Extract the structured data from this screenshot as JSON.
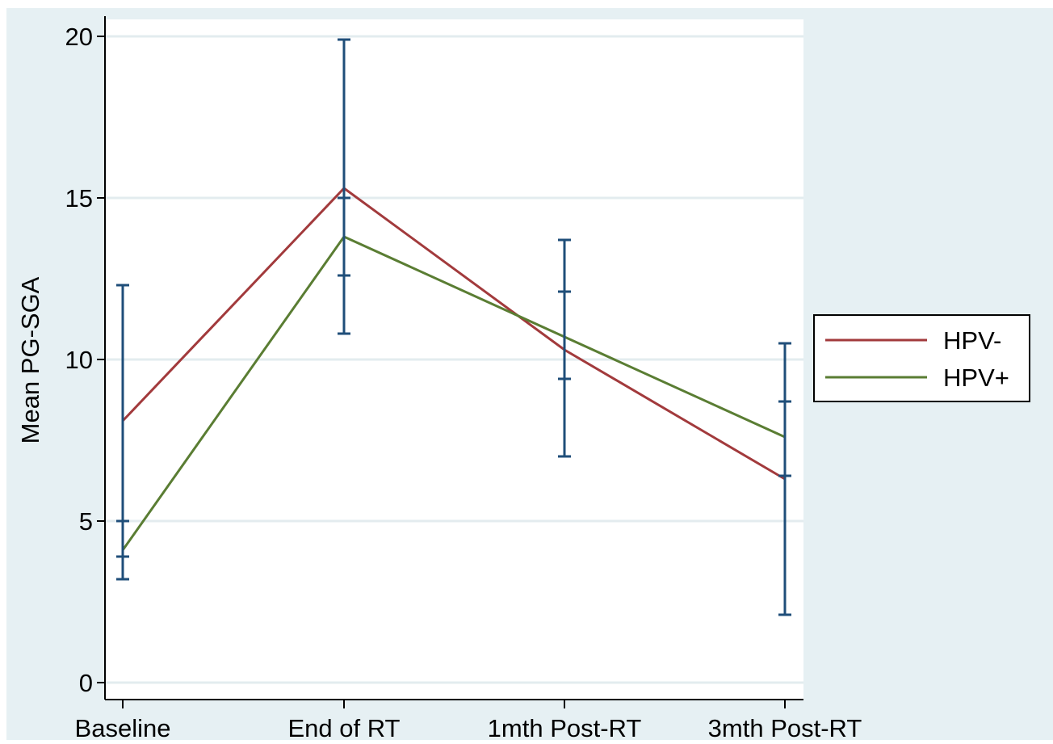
{
  "chart_data": {
    "type": "line",
    "title": "",
    "xlabel": "",
    "ylabel": "Mean PG-SGA",
    "categories": [
      "Baseline",
      "End of RT",
      "1mth Post-RT",
      "3mth Post-RT"
    ],
    "ylim": [
      0,
      20
    ],
    "yticks": [
      0,
      5,
      10,
      15,
      20
    ],
    "grid": true,
    "legend_position": "right",
    "series": [
      {
        "name": "HPV-",
        "color": "#a23a3c",
        "values": [
          8.1,
          15.3,
          10.3,
          6.3
        ]
      },
      {
        "name": "HPV+",
        "color": "#5a7d33",
        "values": [
          4.1,
          13.8,
          10.7,
          7.6
        ]
      }
    ],
    "error_bars": {
      "color": "#1f4e79",
      "intervals": [
        {
          "category": "Baseline",
          "low": 3.2,
          "high": 12.3,
          "tick_marks": [
            3.9,
            5.0
          ]
        },
        {
          "category": "End of RT",
          "low": 10.8,
          "high": 19.9,
          "tick_marks": [
            12.6,
            15.0
          ]
        },
        {
          "category": "1mth Post-RT",
          "low": 7.0,
          "high": 13.7,
          "tick_marks": [
            9.4,
            12.1
          ]
        },
        {
          "category": "3mth Post-RT",
          "low": 2.1,
          "high": 10.5,
          "tick_marks": [
            6.4,
            8.7
          ]
        }
      ]
    },
    "colors": {
      "outer_background": "#e6f0f3",
      "plot_background": "#ffffff",
      "gridline": "#e3ecef",
      "axis": "#000000"
    }
  }
}
